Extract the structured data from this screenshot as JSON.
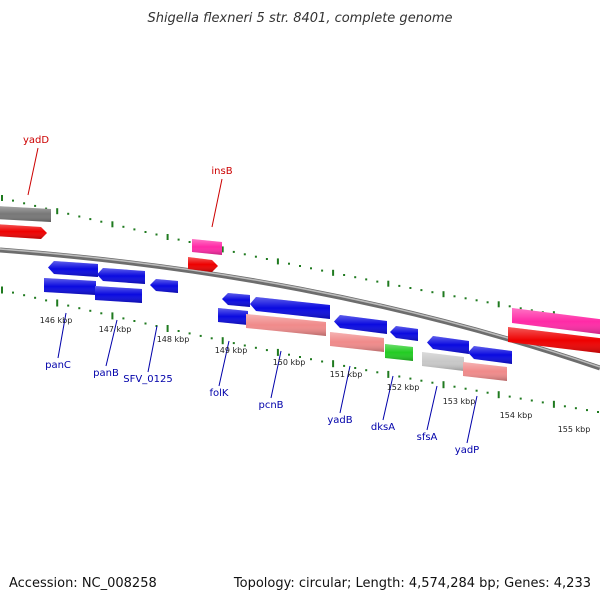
{
  "title": "Shigella flexneri 5 str. 8401, complete genome",
  "footer": {
    "accession": "Accession: NC_008258",
    "summary": "Topology: circular; Length: 4,574,284 bp; Genes: 4,233"
  },
  "colors": {
    "genome_line": "#7a7a7a",
    "tick": "#1f7a1f",
    "blue_gene": "#0a0ae0",
    "red_gene": "#ee0000",
    "pink_gene": "#ff2aa6",
    "salmon_gene": "#f08a8a",
    "green_gene": "#22cc22",
    "gray_gene": "#777777",
    "light_gray_gene": "#c8c8c8",
    "label_blue": "#0000aa",
    "label_red": "#cc0000"
  },
  "kbp_labels": [
    "146 kbp",
    "147 kbp",
    "148 kbp",
    "149 kbp",
    "150 kbp",
    "151 kbp",
    "152 kbp",
    "153 kbp",
    "154 kbp",
    "155 kbp"
  ],
  "gene_labels": [
    {
      "text": "yadD",
      "color": "red"
    },
    {
      "text": "insB",
      "color": "red"
    },
    {
      "text": "panC",
      "color": "blue"
    },
    {
      "text": "panB",
      "color": "blue"
    },
    {
      "text": "SFV_0125",
      "color": "blue"
    },
    {
      "text": "folK",
      "color": "blue"
    },
    {
      "text": "pcnB",
      "color": "blue"
    },
    {
      "text": "yadB",
      "color": "blue"
    },
    {
      "text": "dksA",
      "color": "blue"
    },
    {
      "text": "sfsA",
      "color": "blue"
    },
    {
      "text": "yadP",
      "color": "blue"
    }
  ]
}
